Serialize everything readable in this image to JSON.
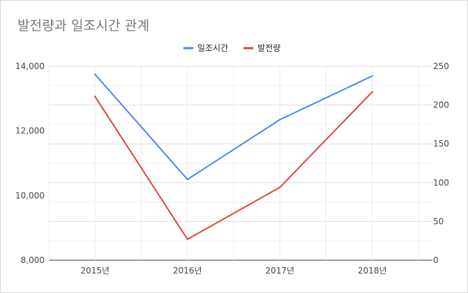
{
  "chart_data": {
    "type": "line",
    "title": "발전량과 일조시간 관계",
    "categories": [
      "2015년",
      "2016년",
      "2017년",
      "2018년"
    ],
    "series": [
      {
        "name": "일조시간",
        "axis": "left",
        "color": "#4a86e8",
        "values": [
          13750,
          10500,
          12350,
          13700
        ]
      },
      {
        "name": "발전량",
        "axis": "right",
        "color": "#d24a3a",
        "values": [
          211,
          27,
          94,
          217
        ]
      }
    ],
    "y_left": {
      "ylim": [
        8000,
        14000
      ],
      "ticks": [
        8000,
        10000,
        12000,
        14000
      ],
      "tick_labels": [
        "8,000",
        "10,000",
        "12,000",
        "14,000"
      ]
    },
    "y_right": {
      "ylim": [
        0,
        250
      ],
      "ticks": [
        0,
        50,
        100,
        150,
        200,
        250
      ],
      "tick_labels": [
        "0",
        "50",
        "100",
        "150",
        "200",
        "250"
      ]
    },
    "grid": true,
    "legend_position": "top-center",
    "xlabel": "",
    "ylabel": ""
  }
}
